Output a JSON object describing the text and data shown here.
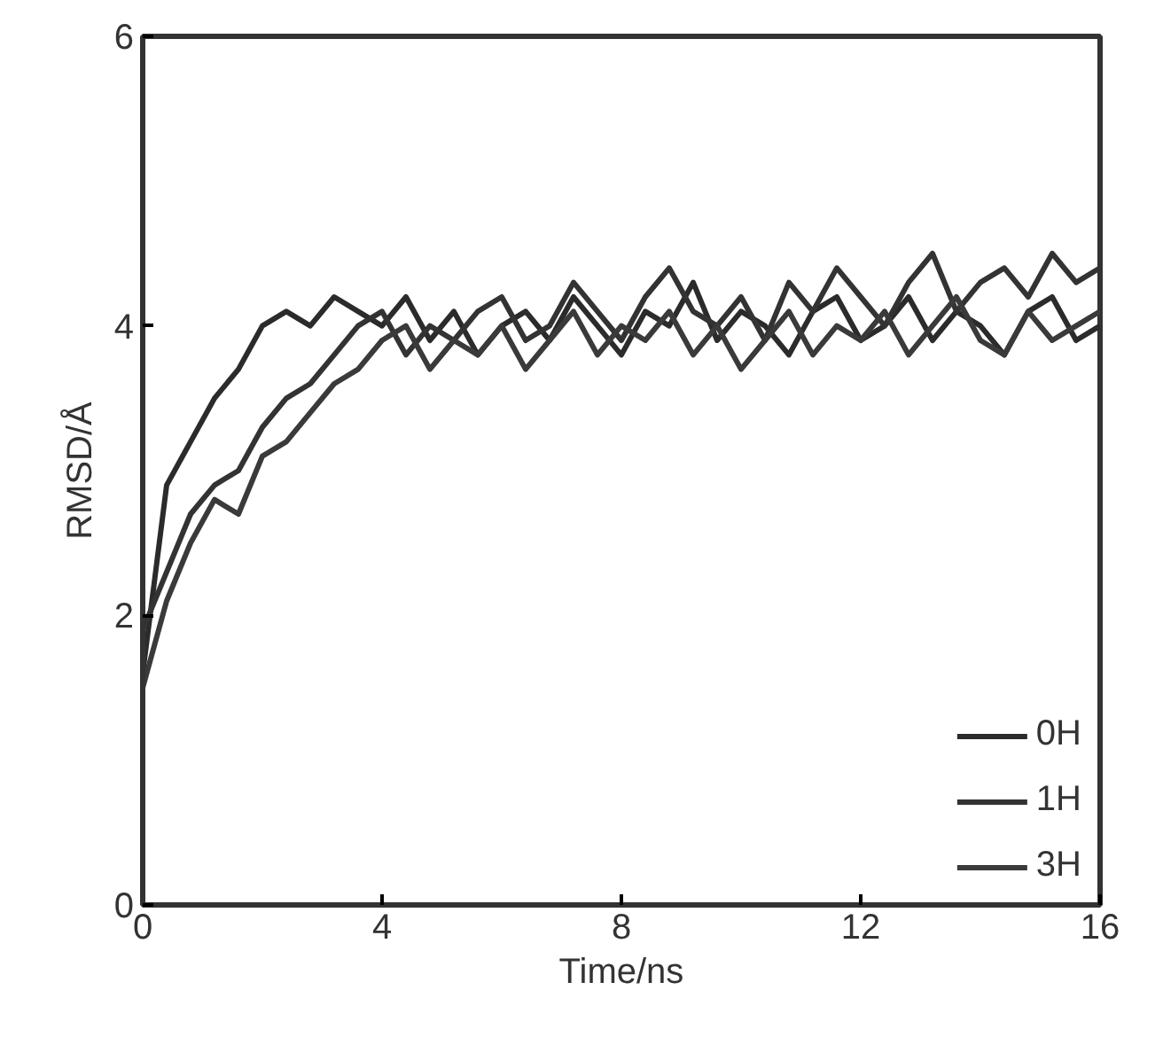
{
  "chart_data": {
    "type": "line",
    "xlabel": "Time/ns",
    "ylabel": "RMSD/Å",
    "x": [
      0,
      0.4,
      0.8,
      1.2,
      1.6,
      2,
      2.4,
      2.8,
      3.2,
      3.6,
      4,
      4.4,
      4.8,
      5.2,
      5.6,
      6,
      6.4,
      6.8,
      7.2,
      7.6,
      8,
      8.4,
      8.8,
      9.2,
      9.6,
      10,
      10.4,
      10.8,
      11.2,
      11.6,
      12,
      12.4,
      12.8,
      13.2,
      13.6,
      14,
      14.4,
      14.8,
      15.2,
      15.6,
      16
    ],
    "series": [
      {
        "name": "0H",
        "color": "#2b2b2b",
        "values": [
          1.6,
          2.9,
          3.2,
          3.5,
          3.7,
          4.0,
          4.1,
          4.0,
          4.2,
          4.1,
          4.0,
          4.2,
          3.9,
          4.1,
          3.8,
          4.0,
          4.1,
          3.9,
          4.2,
          4.0,
          3.8,
          4.1,
          4.0,
          4.3,
          3.9,
          4.1,
          4.0,
          3.8,
          4.1,
          4.2,
          3.9,
          4.0,
          4.2,
          3.9,
          4.1,
          4.0,
          3.8,
          4.1,
          4.2,
          3.9,
          4.0
        ]
      },
      {
        "name": "1H",
        "color": "#333333",
        "values": [
          1.9,
          2.3,
          2.7,
          2.9,
          3.0,
          3.3,
          3.5,
          3.6,
          3.8,
          4.0,
          4.1,
          3.8,
          4.0,
          3.9,
          4.1,
          4.2,
          3.9,
          4.0,
          4.3,
          4.1,
          3.9,
          4.2,
          4.4,
          4.1,
          4.0,
          4.2,
          3.9,
          4.3,
          4.1,
          4.4,
          4.2,
          4.0,
          4.3,
          4.5,
          4.1,
          4.3,
          4.4,
          4.2,
          4.5,
          4.3,
          4.4
        ]
      },
      {
        "name": "3H",
        "color": "#3a3a3a",
        "values": [
          1.5,
          2.1,
          2.5,
          2.8,
          2.7,
          3.1,
          3.2,
          3.4,
          3.6,
          3.7,
          3.9,
          4.0,
          3.7,
          3.9,
          3.8,
          4.0,
          3.7,
          3.9,
          4.1,
          3.8,
          4.0,
          3.9,
          4.1,
          3.8,
          4.0,
          3.7,
          3.9,
          4.1,
          3.8,
          4.0,
          3.9,
          4.1,
          3.8,
          4.0,
          4.2,
          3.9,
          3.8,
          4.1,
          3.9,
          4.0,
          4.1
        ]
      }
    ],
    "xlim": [
      0,
      16
    ],
    "xticks": [
      0,
      4,
      8,
      12,
      16
    ],
    "ylim": [
      0,
      6
    ],
    "yticks": [
      0,
      2,
      4,
      6
    ],
    "grid": false,
    "legend": "bottom right",
    "line_style": "solid",
    "marker": "none"
  }
}
